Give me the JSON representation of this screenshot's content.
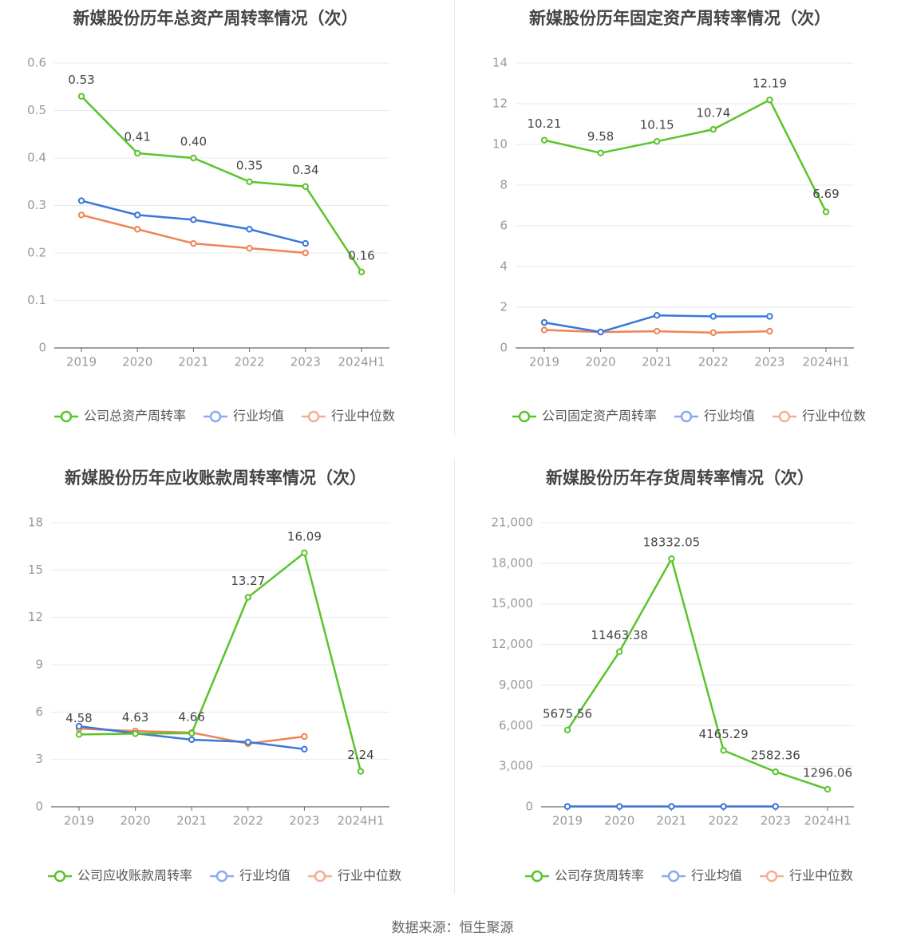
{
  "colors": {
    "company": "#5ac42b",
    "avg": "#3a76db",
    "median": "#ee8456",
    "avg_legend": "#8aaaf0",
    "median_legend": "#f5ad94",
    "grid": "#e6e8ee",
    "axis": "#666666",
    "tick_text": "#999999",
    "label_text": "#444444",
    "title_text": "#444444"
  },
  "source": "数据来源：恒生聚源",
  "chart_data": [
    {
      "type": "line",
      "title": "新媒股份历年总资产周转率情况（次）",
      "categories": [
        "2019",
        "2020",
        "2021",
        "2022",
        "2023",
        "2024H1"
      ],
      "yticks": [
        "0",
        "0.1",
        "0.2",
        "0.3",
        "0.4",
        "0.5",
        "0.6"
      ],
      "ylim": [
        0,
        0.6
      ],
      "series": [
        {
          "name": "公司总资产周转率",
          "role": "company",
          "values": [
            0.53,
            0.41,
            0.4,
            0.35,
            0.34,
            0.16
          ],
          "labels": [
            "0.53",
            "0.41",
            "0.40",
            "0.35",
            "0.34",
            "0.16"
          ]
        },
        {
          "name": "行业均值",
          "role": "avg",
          "values": [
            0.31,
            0.28,
            0.27,
            0.25,
            0.22,
            null
          ]
        },
        {
          "name": "行业中位数",
          "role": "median",
          "values": [
            0.28,
            0.25,
            0.22,
            0.21,
            0.2,
            null
          ]
        }
      ],
      "legend": "bottom",
      "grid": true
    },
    {
      "type": "line",
      "title": "新媒股份历年固定资产周转率情况（次）",
      "categories": [
        "2019",
        "2020",
        "2021",
        "2022",
        "2023",
        "2024H1"
      ],
      "yticks": [
        "0",
        "2",
        "4",
        "6",
        "8",
        "10",
        "12",
        "14"
      ],
      "ylim": [
        0,
        14
      ],
      "series": [
        {
          "name": "公司固定资产周转率",
          "role": "company",
          "values": [
            10.21,
            9.58,
            10.15,
            10.74,
            12.19,
            6.69
          ],
          "labels": [
            "10.21",
            "9.58",
            "10.15",
            "10.74",
            "12.19",
            "6.69"
          ]
        },
        {
          "name": "行业均值",
          "role": "avg",
          "values": [
            1.25,
            0.78,
            1.6,
            1.55,
            1.55,
            null
          ]
        },
        {
          "name": "行业中位数",
          "role": "median",
          "values": [
            0.88,
            0.78,
            0.82,
            0.75,
            0.82,
            null
          ]
        }
      ],
      "legend": "bottom",
      "grid": true
    },
    {
      "type": "line",
      "title": "新媒股份历年应收账款周转率情况（次）",
      "categories": [
        "2019",
        "2020",
        "2021",
        "2022",
        "2023",
        "2024H1"
      ],
      "yticks": [
        "0",
        "3",
        "6",
        "9",
        "12",
        "15",
        "18"
      ],
      "ylim": [
        0,
        18
      ],
      "series": [
        {
          "name": "公司应收账款周转率",
          "role": "company",
          "values": [
            4.58,
            4.63,
            4.66,
            13.27,
            16.09,
            2.24
          ],
          "labels": [
            "4.58",
            "4.63",
            "4.66",
            "13.27",
            "16.09",
            "2.24"
          ]
        },
        {
          "name": "行业均值",
          "role": "avg",
          "values": [
            5.1,
            4.65,
            4.25,
            4.1,
            3.65,
            null
          ]
        },
        {
          "name": "行业中位数",
          "role": "median",
          "values": [
            4.95,
            4.8,
            4.7,
            4.0,
            4.45,
            null
          ]
        }
      ],
      "legend": "bottom",
      "grid": true
    },
    {
      "type": "line",
      "title": "新媒股份历年存货周转率情况（次）",
      "categories": [
        "2019",
        "2020",
        "2021",
        "2022",
        "2023",
        "2024H1"
      ],
      "yticks": [
        "0",
        "3,000",
        "6,000",
        "9,000",
        "12,000",
        "15,000",
        "18,000",
        "21,000"
      ],
      "ylim": [
        0,
        21000
      ],
      "series": [
        {
          "name": "公司存货周转率",
          "role": "company",
          "values": [
            5675.56,
            11463.38,
            18332.05,
            4165.29,
            2582.36,
            1296.06
          ],
          "labels": [
            "5675.56",
            "11463.38",
            "18332.05",
            "4165.29",
            "2582.36",
            "1296.06"
          ]
        },
        {
          "name": "行业均值",
          "role": "avg",
          "values": [
            20,
            20,
            20,
            20,
            20,
            null
          ]
        },
        {
          "name": "行业中位数",
          "role": "median",
          "values": [
            20,
            20,
            20,
            20,
            20,
            null
          ]
        }
      ],
      "legend": "bottom",
      "grid": true
    }
  ]
}
